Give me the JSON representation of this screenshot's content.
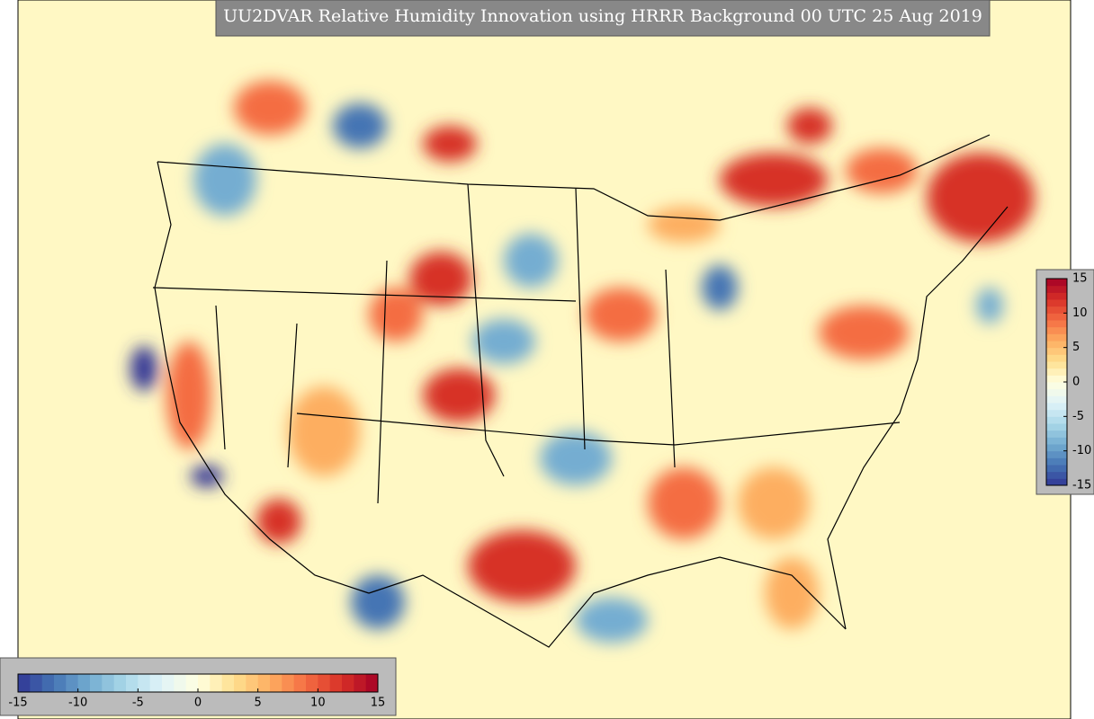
{
  "title": "UU2DVAR Relative Humidity Innovation using HRRR Background 00 UTC 25 Aug 2019",
  "colorbar": {
    "lim": [
      -15,
      15
    ],
    "ticks": [
      -15,
      -10,
      -5,
      0,
      5,
      10,
      15
    ],
    "colors": [
      "#313695",
      "#4575b4",
      "#74add1",
      "#abd9e9",
      "#e0f3f8",
      "#ffffe0",
      "#fee090",
      "#fdae61",
      "#f46d43",
      "#d73027",
      "#a50026"
    ]
  }
}
